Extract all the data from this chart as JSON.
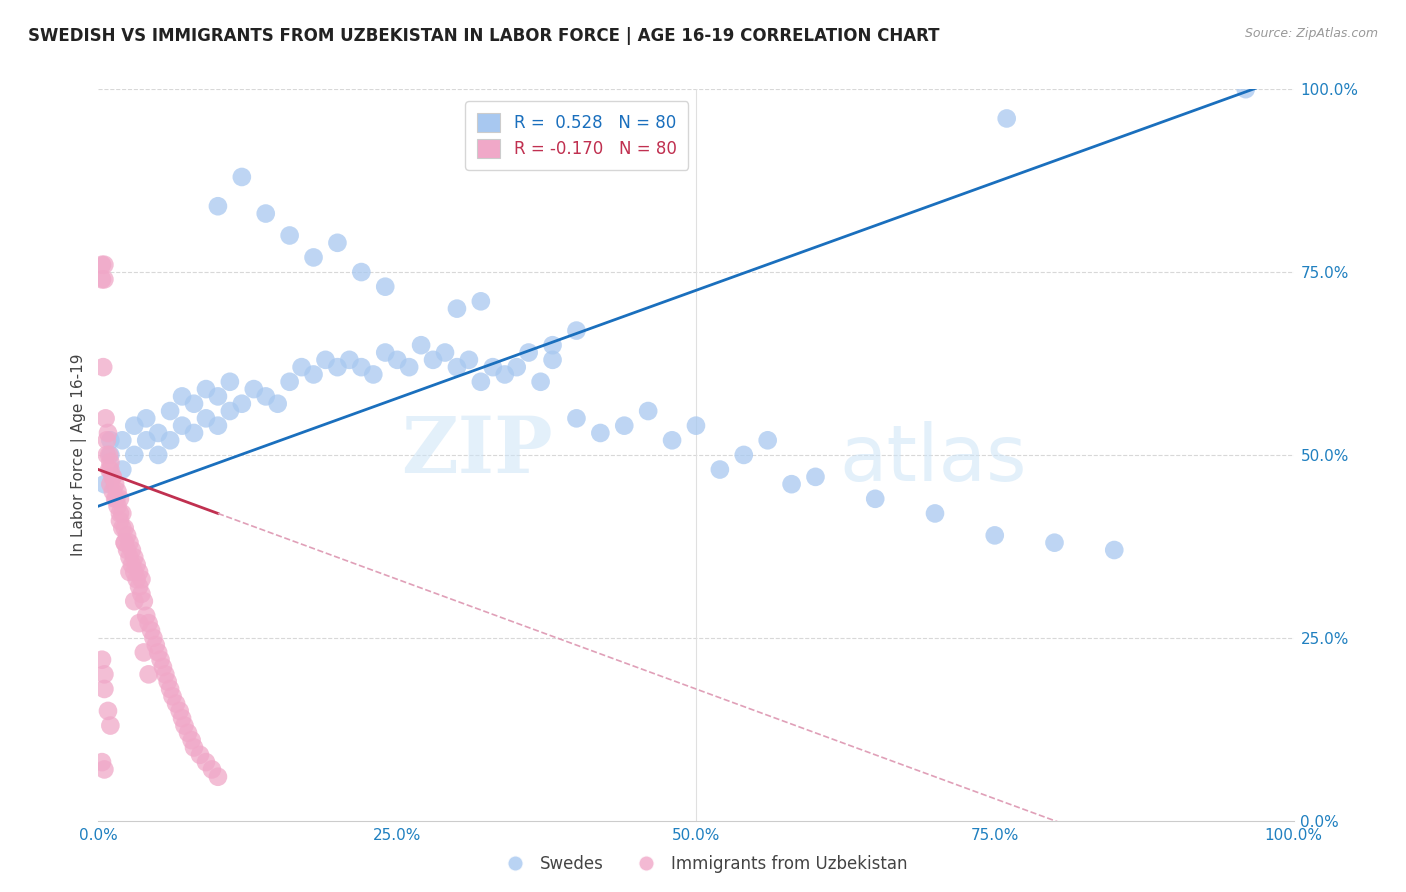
{
  "title": "SWEDISH VS IMMIGRANTS FROM UZBEKISTAN IN LABOR FORCE | AGE 16-19 CORRELATION CHART",
  "source": "Source: ZipAtlas.com",
  "ylabel": "In Labor Force | Age 16-19",
  "xlim": [
    0.0,
    1.0
  ],
  "ylim": [
    0.0,
    1.0
  ],
  "xticks": [
    0.0,
    0.25,
    0.5,
    0.75,
    1.0
  ],
  "yticks": [
    0.0,
    0.25,
    0.5,
    0.75,
    1.0
  ],
  "xticklabels": [
    "0.0%",
    "25.0%",
    "50.0%",
    "75.0%",
    "100.0%"
  ],
  "yticklabels": [
    "0.0%",
    "25.0%",
    "50.0%",
    "75.0%",
    "100.0%"
  ],
  "blue_R": "0.528",
  "blue_N": "80",
  "pink_R": "-0.170",
  "pink_N": "80",
  "blue_color": "#a8c8f0",
  "pink_color": "#f0a8c8",
  "blue_line_color": "#1a6fbd",
  "pink_line_color": "#c03050",
  "pink_line_dashed_color": "#e0a0b8",
  "watermark_zip": "ZIP",
  "watermark_atlas": "atlas",
  "legend_blue_label": "Swedes",
  "legend_pink_label": "Immigrants from Uzbekistan",
  "blue_x": [
    0.005,
    0.01,
    0.01,
    0.02,
    0.02,
    0.03,
    0.03,
    0.04,
    0.04,
    0.05,
    0.05,
    0.06,
    0.06,
    0.07,
    0.07,
    0.08,
    0.08,
    0.09,
    0.09,
    0.1,
    0.1,
    0.11,
    0.11,
    0.12,
    0.13,
    0.14,
    0.15,
    0.16,
    0.17,
    0.18,
    0.19,
    0.2,
    0.21,
    0.22,
    0.23,
    0.24,
    0.25,
    0.26,
    0.27,
    0.28,
    0.29,
    0.3,
    0.31,
    0.32,
    0.33,
    0.34,
    0.35,
    0.36,
    0.37,
    0.38,
    0.4,
    0.42,
    0.44,
    0.46,
    0.48,
    0.5,
    0.52,
    0.54,
    0.56,
    0.58,
    0.6,
    0.65,
    0.7,
    0.75,
    0.8,
    0.85,
    0.3,
    0.32,
    0.18,
    0.2,
    0.22,
    0.24,
    0.1,
    0.12,
    0.14,
    0.16,
    0.38,
    0.4,
    0.96,
    0.76
  ],
  "blue_y": [
    0.46,
    0.5,
    0.52,
    0.48,
    0.52,
    0.5,
    0.54,
    0.52,
    0.55,
    0.5,
    0.53,
    0.52,
    0.56,
    0.54,
    0.58,
    0.53,
    0.57,
    0.55,
    0.59,
    0.54,
    0.58,
    0.56,
    0.6,
    0.57,
    0.59,
    0.58,
    0.57,
    0.6,
    0.62,
    0.61,
    0.63,
    0.62,
    0.63,
    0.62,
    0.61,
    0.64,
    0.63,
    0.62,
    0.65,
    0.63,
    0.64,
    0.62,
    0.63,
    0.6,
    0.62,
    0.61,
    0.62,
    0.64,
    0.6,
    0.63,
    0.55,
    0.53,
    0.54,
    0.56,
    0.52,
    0.54,
    0.48,
    0.5,
    0.52,
    0.46,
    0.47,
    0.44,
    0.42,
    0.39,
    0.38,
    0.37,
    0.7,
    0.71,
    0.77,
    0.79,
    0.75,
    0.73,
    0.84,
    0.88,
    0.83,
    0.8,
    0.65,
    0.67,
    1.0,
    0.96
  ],
  "pink_x": [
    0.003,
    0.003,
    0.005,
    0.005,
    0.007,
    0.007,
    0.009,
    0.009,
    0.01,
    0.01,
    0.012,
    0.012,
    0.014,
    0.014,
    0.016,
    0.016,
    0.018,
    0.018,
    0.02,
    0.02,
    0.022,
    0.022,
    0.024,
    0.024,
    0.026,
    0.026,
    0.028,
    0.028,
    0.03,
    0.03,
    0.032,
    0.032,
    0.034,
    0.034,
    0.036,
    0.036,
    0.038,
    0.04,
    0.042,
    0.044,
    0.046,
    0.048,
    0.05,
    0.052,
    0.054,
    0.056,
    0.058,
    0.06,
    0.062,
    0.065,
    0.068,
    0.07,
    0.072,
    0.075,
    0.078,
    0.08,
    0.085,
    0.09,
    0.095,
    0.1,
    0.004,
    0.006,
    0.008,
    0.01,
    0.012,
    0.015,
    0.018,
    0.022,
    0.026,
    0.03,
    0.034,
    0.038,
    0.042,
    0.003,
    0.005,
    0.005,
    0.008,
    0.01,
    0.003,
    0.005
  ],
  "pink_y": [
    0.74,
    0.76,
    0.74,
    0.76,
    0.5,
    0.52,
    0.48,
    0.5,
    0.46,
    0.48,
    0.45,
    0.47,
    0.44,
    0.46,
    0.43,
    0.45,
    0.42,
    0.44,
    0.4,
    0.42,
    0.38,
    0.4,
    0.37,
    0.39,
    0.36,
    0.38,
    0.35,
    0.37,
    0.34,
    0.36,
    0.33,
    0.35,
    0.32,
    0.34,
    0.31,
    0.33,
    0.3,
    0.28,
    0.27,
    0.26,
    0.25,
    0.24,
    0.23,
    0.22,
    0.21,
    0.2,
    0.19,
    0.18,
    0.17,
    0.16,
    0.15,
    0.14,
    0.13,
    0.12,
    0.11,
    0.1,
    0.09,
    0.08,
    0.07,
    0.06,
    0.62,
    0.55,
    0.53,
    0.49,
    0.47,
    0.44,
    0.41,
    0.38,
    0.34,
    0.3,
    0.27,
    0.23,
    0.2,
    0.22,
    0.2,
    0.18,
    0.15,
    0.13,
    0.08,
    0.07
  ]
}
